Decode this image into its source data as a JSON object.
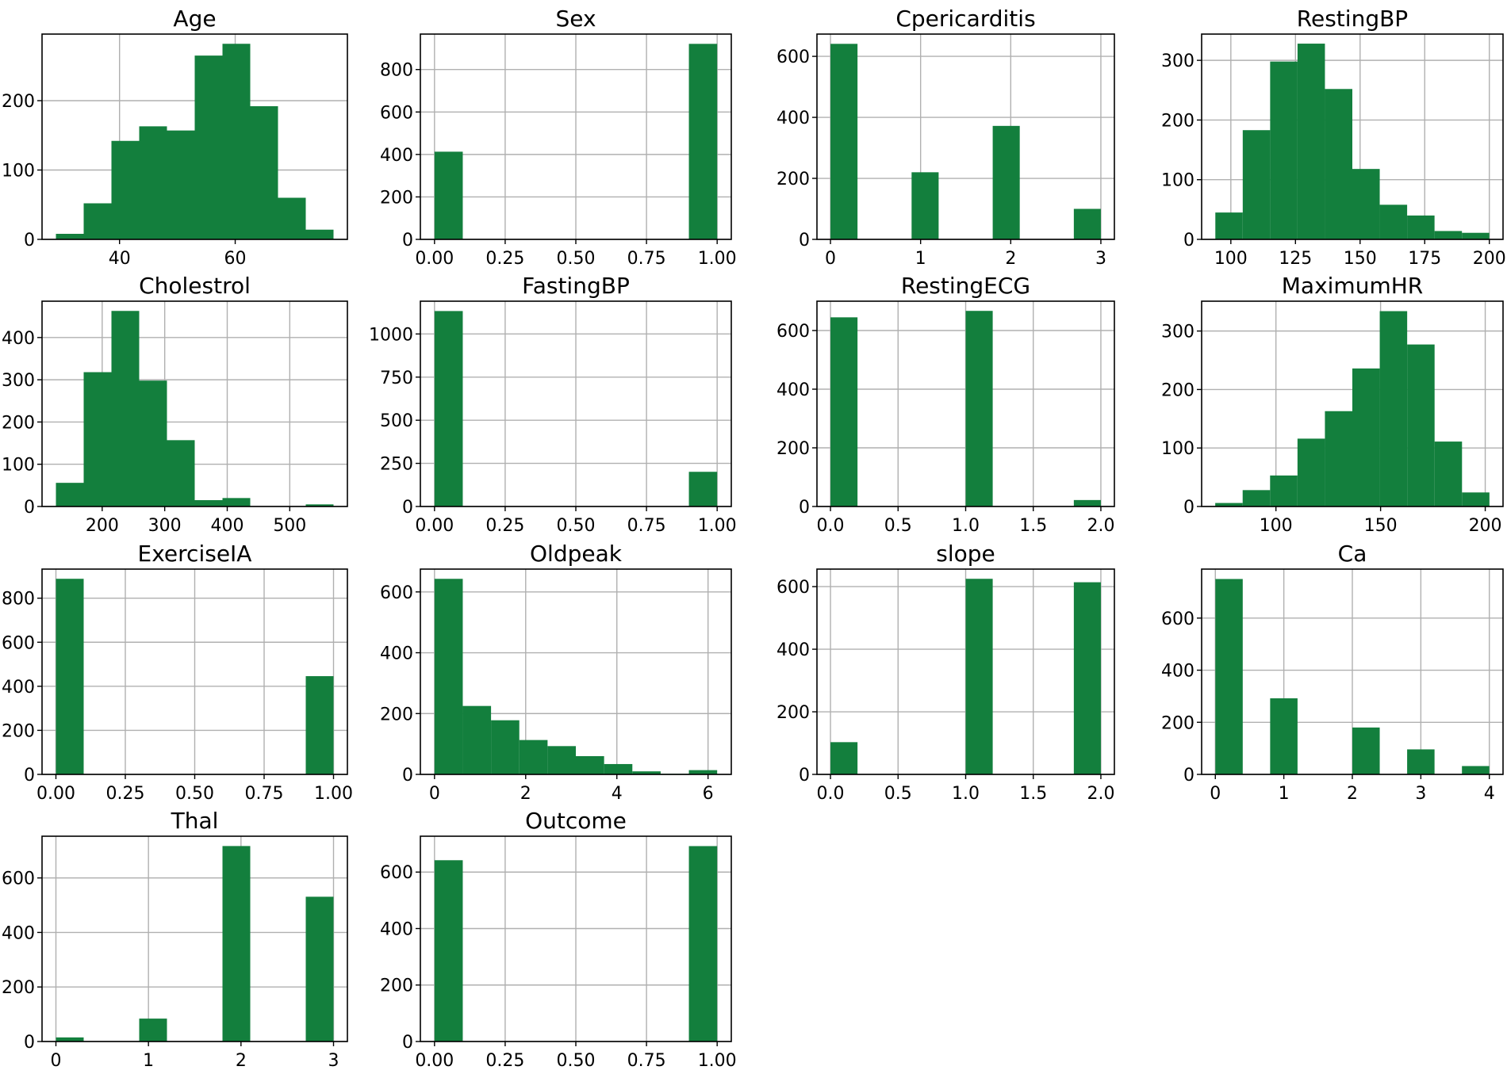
{
  "chart_data": [
    {
      "type": "bar",
      "subtype": "histogram",
      "title": "Age",
      "bin_edges": [
        29,
        33.8,
        38.6,
        43.4,
        48.2,
        53,
        57.8,
        62.6,
        67.4,
        72.2,
        77
      ],
      "values": [
        8,
        52,
        142,
        163,
        157,
        265,
        282,
        192,
        60,
        14
      ],
      "xlim": [
        26.6,
        79.4
      ],
      "ylim": [
        0,
        296
      ],
      "xticks": [
        40,
        60
      ],
      "yticks": [
        0,
        100,
        200
      ]
    },
    {
      "type": "bar",
      "subtype": "histogram",
      "title": "Sex",
      "bin_edges": [
        0,
        0.1,
        0.2,
        0.3,
        0.4,
        0.5,
        0.6,
        0.7,
        0.8,
        0.9,
        1.0
      ],
      "values": [
        413,
        0,
        0,
        0,
        0,
        0,
        0,
        0,
        0,
        921
      ],
      "xlim": [
        -0.05,
        1.05
      ],
      "ylim": [
        0,
        967
      ],
      "xticks": [
        "0.00",
        "0.25",
        "0.50",
        "0.75",
        "1.00"
      ],
      "yticks": [
        0,
        200,
        400,
        600,
        800
      ]
    },
    {
      "type": "bar",
      "subtype": "histogram",
      "title": "Cpericarditis",
      "bin_edges": [
        0,
        0.3,
        0.6,
        0.9,
        1.2,
        1.5,
        1.8,
        2.1,
        2.4,
        2.7,
        3.0
      ],
      "values": [
        641,
        0,
        0,
        220,
        0,
        0,
        372,
        0,
        0,
        100
      ],
      "xlim": [
        -0.15,
        3.15
      ],
      "ylim": [
        0,
        673
      ],
      "xticks": [
        0,
        1,
        2,
        3
      ],
      "yticks": [
        0,
        200,
        400,
        600
      ]
    },
    {
      "type": "bar",
      "subtype": "histogram",
      "title": "RestingBP",
      "bin_edges": [
        94,
        104.6,
        115.2,
        125.8,
        136.4,
        147,
        157.6,
        168.2,
        178.8,
        189.4,
        200
      ],
      "values": [
        45,
        183,
        298,
        328,
        252,
        118,
        58,
        40,
        14,
        11
      ],
      "xlim": [
        88.7,
        205.3
      ],
      "ylim": [
        0,
        344
      ],
      "xticks": [
        100,
        125,
        150,
        175,
        200
      ],
      "yticks": [
        0,
        100,
        200,
        300
      ]
    },
    {
      "type": "bar",
      "subtype": "histogram",
      "title": "Cholestrol",
      "bin_edges": [
        126,
        170.4,
        214.8,
        259.2,
        303.6,
        348,
        392.4,
        436.8,
        481.2,
        525.6,
        570
      ],
      "values": [
        56,
        318,
        463,
        298,
        157,
        15,
        20,
        0,
        0,
        5
      ],
      "xlim": [
        103.8,
        592.2
      ],
      "ylim": [
        0,
        486
      ],
      "xticks": [
        200,
        300,
        400,
        500
      ],
      "yticks": [
        0,
        100,
        200,
        300,
        400
      ]
    },
    {
      "type": "bar",
      "subtype": "histogram",
      "title": "FastingBP",
      "bin_edges": [
        0,
        0.1,
        0.2,
        0.3,
        0.4,
        0.5,
        0.6,
        0.7,
        0.8,
        0.9,
        1.0
      ],
      "values": [
        1133,
        0,
        0,
        0,
        0,
        0,
        0,
        0,
        0,
        201
      ],
      "xlim": [
        -0.05,
        1.05
      ],
      "ylim": [
        0,
        1190
      ],
      "xticks": [
        "0.00",
        "0.25",
        "0.50",
        "0.75",
        "1.00"
      ],
      "yticks": [
        0,
        250,
        500,
        750,
        1000
      ]
    },
    {
      "type": "bar",
      "subtype": "histogram",
      "title": "RestingECG",
      "bin_edges": [
        0,
        0.2,
        0.4,
        0.6,
        0.8,
        1.0,
        1.2,
        1.4,
        1.6,
        1.8,
        2.0
      ],
      "values": [
        645,
        0,
        0,
        0,
        0,
        667,
        0,
        0,
        0,
        22
      ],
      "xlim": [
        -0.1,
        2.1
      ],
      "ylim": [
        0,
        700
      ],
      "xticks": [
        "0.0",
        "0.5",
        "1.0",
        "1.5",
        "2.0"
      ],
      "yticks": [
        0,
        200,
        400,
        600
      ]
    },
    {
      "type": "bar",
      "subtype": "histogram",
      "title": "MaximumHR",
      "bin_edges": [
        71,
        84.1,
        97.2,
        110.3,
        123.4,
        136.5,
        149.6,
        162.7,
        175.8,
        188.9,
        202
      ],
      "values": [
        6,
        28,
        53,
        116,
        163,
        236,
        334,
        277,
        111,
        24
      ],
      "xlim": [
        64.5,
        208.5
      ],
      "ylim": [
        0,
        351
      ],
      "xticks": [
        100,
        150,
        200
      ],
      "yticks": [
        0,
        100,
        200,
        300
      ]
    },
    {
      "type": "bar",
      "subtype": "histogram",
      "title": "ExerciseIA",
      "bin_edges": [
        0,
        0.1,
        0.2,
        0.3,
        0.4,
        0.5,
        0.6,
        0.7,
        0.8,
        0.9,
        1.0
      ],
      "values": [
        888,
        0,
        0,
        0,
        0,
        0,
        0,
        0,
        0,
        446
      ],
      "xlim": [
        -0.05,
        1.05
      ],
      "ylim": [
        0,
        932
      ],
      "xticks": [
        "0.00",
        "0.25",
        "0.50",
        "0.75",
        "1.00"
      ],
      "yticks": [
        0,
        200,
        400,
        600,
        800
      ]
    },
    {
      "type": "bar",
      "subtype": "histogram",
      "title": "Oldpeak",
      "bin_edges": [
        0,
        0.62,
        1.24,
        1.86,
        2.48,
        3.1,
        3.72,
        4.34,
        4.96,
        5.58,
        6.2
      ],
      "values": [
        643,
        225,
        178,
        113,
        93,
        60,
        34,
        10,
        2,
        14
      ],
      "xlim": [
        -0.31,
        6.51
      ],
      "ylim": [
        0,
        675
      ],
      "xticks": [
        0,
        2,
        4,
        6
      ],
      "yticks": [
        0,
        200,
        400,
        600
      ]
    },
    {
      "type": "bar",
      "subtype": "histogram",
      "title": "slope",
      "bin_edges": [
        0,
        0.2,
        0.4,
        0.6,
        0.8,
        1.0,
        1.2,
        1.4,
        1.6,
        1.8,
        2.0
      ],
      "values": [
        103,
        0,
        0,
        0,
        0,
        625,
        0,
        0,
        0,
        614
      ],
      "xlim": [
        -0.1,
        2.1
      ],
      "ylim": [
        0,
        656
      ],
      "xticks": [
        "0.0",
        "0.5",
        "1.0",
        "1.5",
        "2.0"
      ],
      "yticks": [
        0,
        200,
        400,
        600
      ]
    },
    {
      "type": "bar",
      "subtype": "histogram",
      "title": "Ca",
      "bin_edges": [
        0,
        0.4,
        0.8,
        1.2,
        1.6,
        2.0,
        2.4,
        2.8,
        3.2,
        3.6,
        4.0
      ],
      "values": [
        750,
        0,
        292,
        0,
        0,
        180,
        0,
        96,
        0,
        32
      ],
      "xlim": [
        -0.2,
        4.2
      ],
      "ylim": [
        0,
        788
      ],
      "xticks": [
        0,
        1,
        2,
        3,
        4
      ],
      "yticks": [
        0,
        200,
        400,
        600
      ]
    },
    {
      "type": "bar",
      "subtype": "histogram",
      "title": "Thal",
      "bin_edges": [
        0,
        0.3,
        0.6,
        0.9,
        1.2,
        1.5,
        1.8,
        2.1,
        2.4,
        2.7,
        3.0
      ],
      "values": [
        15,
        0,
        0,
        84,
        0,
        0,
        717,
        0,
        0,
        531
      ],
      "xlim": [
        -0.15,
        3.15
      ],
      "ylim": [
        0,
        753
      ],
      "xticks": [
        0,
        1,
        2,
        3
      ],
      "yticks": [
        0,
        200,
        400,
        600
      ]
    },
    {
      "type": "bar",
      "subtype": "histogram",
      "title": "Outcome",
      "bin_edges": [
        0,
        0.1,
        0.2,
        0.3,
        0.4,
        0.5,
        0.6,
        0.7,
        0.8,
        0.9,
        1.0
      ],
      "values": [
        642,
        0,
        0,
        0,
        0,
        0,
        0,
        0,
        0,
        692
      ],
      "xlim": [
        -0.05,
        1.05
      ],
      "ylim": [
        0,
        727
      ],
      "xticks": [
        "0.00",
        "0.25",
        "0.50",
        "0.75",
        "1.00"
      ],
      "yticks": [
        0,
        200,
        400,
        600
      ]
    }
  ],
  "style": {
    "bar_color": "#137f3d",
    "grid_color": "#b0b0b0"
  }
}
